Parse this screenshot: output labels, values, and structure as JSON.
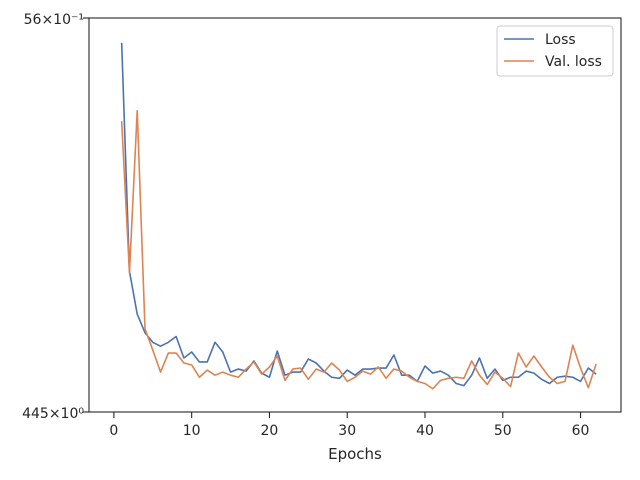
{
  "chart_data": {
    "type": "line",
    "title": "",
    "xlabel": "Epochs",
    "ylabel": "",
    "yscale": "log",
    "xlim": [
      -3.2,
      65.2
    ],
    "ylim_labels": [
      "445×10⁰",
      "56×10⁻¹"
    ],
    "xticks": [
      0,
      10,
      20,
      30,
      40,
      50,
      60
    ],
    "grid": false,
    "legend_position": "top-right",
    "series": [
      {
        "name": "Loss",
        "color": "#4c72b0",
        "x": [
          1,
          2,
          3,
          4,
          5,
          6,
          7,
          8,
          9,
          10,
          11,
          12,
          13,
          14,
          15,
          16,
          17,
          18,
          19,
          20,
          21,
          22,
          23,
          24,
          25,
          26,
          27,
          28,
          29,
          30,
          31,
          32,
          33,
          34,
          35,
          36,
          37,
          38,
          39,
          40,
          41,
          42,
          43,
          44,
          45,
          46,
          47,
          48,
          49,
          50,
          51,
          52,
          53,
          54,
          55,
          56,
          57,
          58,
          59,
          60,
          61,
          62
        ],
        "y": [
          0.953,
          0.611,
          0.562,
          0.542,
          0.532,
          0.528,
          0.532,
          0.538,
          0.516,
          0.522,
          0.512,
          0.512,
          0.532,
          0.522,
          0.502,
          0.505,
          0.503,
          0.513,
          0.501,
          0.497,
          0.523,
          0.499,
          0.502,
          0.502,
          0.515,
          0.511,
          0.503,
          0.497,
          0.496,
          0.504,
          0.499,
          0.505,
          0.505,
          0.506,
          0.506,
          0.519,
          0.499,
          0.499,
          0.493,
          0.508,
          0.501,
          0.503,
          0.499,
          0.491,
          0.489,
          0.499,
          0.516,
          0.496,
          0.505,
          0.494,
          0.497,
          0.497,
          0.503,
          0.501,
          0.495,
          0.491,
          0.497,
          0.498,
          0.497,
          0.493,
          0.506,
          0.5
        ]
      },
      {
        "name": "Val. loss",
        "color": "#dd8452",
        "x": [
          1,
          2,
          3,
          4,
          5,
          6,
          7,
          8,
          9,
          10,
          11,
          12,
          13,
          14,
          15,
          16,
          17,
          18,
          19,
          20,
          21,
          22,
          23,
          24,
          25,
          26,
          27,
          28,
          29,
          30,
          31,
          32,
          33,
          34,
          35,
          36,
          37,
          38,
          39,
          40,
          41,
          42,
          43,
          44,
          45,
          46,
          47,
          48,
          49,
          50,
          51,
          52,
          53,
          54,
          55,
          56,
          57,
          58,
          59,
          60,
          61,
          62
        ],
        "y": [
          0.818,
          0.609,
          0.835,
          0.546,
          0.524,
          0.502,
          0.521,
          0.521,
          0.511,
          0.509,
          0.497,
          0.504,
          0.499,
          0.502,
          0.499,
          0.497,
          0.505,
          0.512,
          0.5,
          0.507,
          0.518,
          0.494,
          0.505,
          0.506,
          0.495,
          0.505,
          0.502,
          0.511,
          0.504,
          0.493,
          0.497,
          0.503,
          0.5,
          0.507,
          0.496,
          0.505,
          0.503,
          0.497,
          0.493,
          0.491,
          0.486,
          0.494,
          0.496,
          0.497,
          0.496,
          0.513,
          0.499,
          0.49,
          0.502,
          0.496,
          0.488,
          0.521,
          0.507,
          0.518,
          0.507,
          0.497,
          0.491,
          0.493,
          0.529,
          0.506,
          0.487,
          0.51
        ]
      }
    ]
  }
}
